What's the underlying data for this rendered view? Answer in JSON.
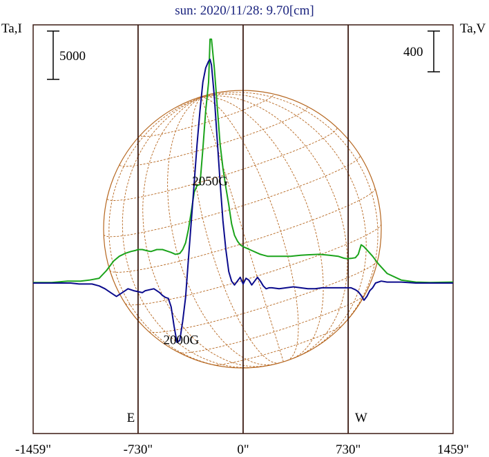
{
  "chart_data": {
    "type": "line",
    "title": "sun: 2020/11/28: 9.70[cm]",
    "left_axis_label": "Ta,I",
    "right_axis_label": "Ta,V",
    "left_scale_bar": "5000",
    "right_scale_bar": "400",
    "x_ticks": [
      "-1459\"",
      "-730\"",
      "0\"",
      "730\"",
      "1459\""
    ],
    "x_tick_values": [
      -1459,
      -730,
      0,
      730,
      1459
    ],
    "xlim": [
      -1459,
      1459
    ],
    "vertical_lines": [
      -730,
      0,
      730
    ],
    "limb_markers": [
      {
        "label": "E",
        "x": -780
      },
      {
        "label": "W",
        "x": 820
      }
    ],
    "annotations": [
      {
        "label": "2050G",
        "x": -230,
        "y": 1.02
      },
      {
        "label": "2000G",
        "x": -430,
        "y": -0.64
      }
    ],
    "colors": {
      "I": "#1aa31a",
      "V": "#0a0a8c",
      "grid": "#b5651d",
      "frame": "#3a1a12",
      "title": "#1a237e"
    },
    "series": [
      {
        "name": "",
        "color": "#1aa31a",
        "x": [
          -1459,
          -1330,
          -1220,
          -1130,
          -1070,
          -1000,
          -950,
          -900,
          -860,
          -820,
          -780,
          -750,
          -730,
          -700,
          -660,
          -640,
          -620,
          -600,
          -560,
          -520,
          -500,
          -470,
          -440,
          -420,
          -400,
          -380,
          -360,
          -340,
          -320,
          -300,
          -280,
          -260,
          -240,
          -230,
          -220,
          -200,
          -180,
          -160,
          -140,
          -120,
          -100,
          -80,
          -60,
          -40,
          -20,
          0,
          30,
          60,
          90,
          120,
          170,
          250,
          330,
          400,
          450,
          530,
          600,
          660,
          700,
          720,
          750,
          780,
          800,
          820,
          840,
          870,
          900,
          940,
          1000,
          1100,
          1200,
          1300,
          1459
        ],
        "y": [
          0.005,
          0.005,
          0.02,
          0.02,
          0.03,
          0.05,
          0.13,
          0.23,
          0.28,
          0.31,
          0.33,
          0.34,
          0.35,
          0.35,
          0.335,
          0.33,
          0.34,
          0.35,
          0.35,
          0.33,
          0.32,
          0.3,
          0.31,
          0.35,
          0.42,
          0.56,
          0.75,
          0.95,
          1.02,
          1.03,
          1.4,
          1.8,
          2.1,
          2.55,
          2.55,
          2.25,
          1.85,
          1.45,
          1.2,
          1.0,
          0.82,
          0.62,
          0.5,
          0.44,
          0.4,
          0.38,
          0.36,
          0.34,
          0.32,
          0.3,
          0.28,
          0.28,
          0.28,
          0.29,
          0.295,
          0.3,
          0.29,
          0.28,
          0.26,
          0.255,
          0.258,
          0.265,
          0.3,
          0.4,
          0.38,
          0.33,
          0.28,
          0.2,
          0.1,
          0.03,
          0.01,
          0.005,
          0.01
        ]
      },
      {
        "name": "",
        "color": "#0a0a8c",
        "x": [
          -1459,
          -1300,
          -1200,
          -1140,
          -1100,
          -1050,
          -1000,
          -960,
          -920,
          -880,
          -840,
          -800,
          -760,
          -730,
          -700,
          -680,
          -650,
          -620,
          -600,
          -580,
          -560,
          -540,
          -520,
          -500,
          -480,
          -460,
          -440,
          -420,
          -400,
          -380,
          -360,
          -340,
          -320,
          -300,
          -280,
          -260,
          -240,
          -230,
          -220,
          -200,
          -180,
          -160,
          -140,
          -120,
          -100,
          -80,
          -60,
          -40,
          -20,
          0,
          20,
          40,
          60,
          80,
          100,
          120,
          140,
          160,
          180,
          200,
          250,
          300,
          350,
          400,
          450,
          500,
          550,
          600,
          650,
          700,
          750,
          780,
          800,
          820,
          840,
          860,
          880,
          900,
          920,
          960,
          1000,
          1100,
          1200,
          1300,
          1459
        ],
        "y": [
          0,
          0,
          0,
          -0.01,
          -0.01,
          -0.01,
          -0.03,
          -0.06,
          -0.1,
          -0.14,
          -0.1,
          -0.06,
          -0.08,
          -0.09,
          -0.1,
          -0.08,
          -0.07,
          -0.06,
          -0.08,
          -0.1,
          -0.13,
          -0.15,
          -0.16,
          -0.25,
          -0.45,
          -0.62,
          -0.6,
          -0.4,
          -0.15,
          0.25,
          0.65,
          1.05,
          1.45,
          1.8,
          2.1,
          2.25,
          2.32,
          2.34,
          2.28,
          1.95,
          1.5,
          1.05,
          0.65,
          0.35,
          0.12,
          0.02,
          -0.02,
          0.02,
          0.06,
          -0.01,
          0.05,
          0.03,
          -0.02,
          0.02,
          0.06,
          0.02,
          -0.03,
          -0.06,
          -0.05,
          -0.05,
          -0.06,
          -0.05,
          -0.04,
          -0.05,
          -0.06,
          -0.06,
          -0.05,
          -0.05,
          -0.05,
          -0.05,
          -0.05,
          -0.07,
          -0.09,
          -0.13,
          -0.18,
          -0.14,
          -0.08,
          -0.05,
          0,
          0.02,
          0.01,
          0.01,
          0,
          0,
          0
        ]
      }
    ]
  }
}
